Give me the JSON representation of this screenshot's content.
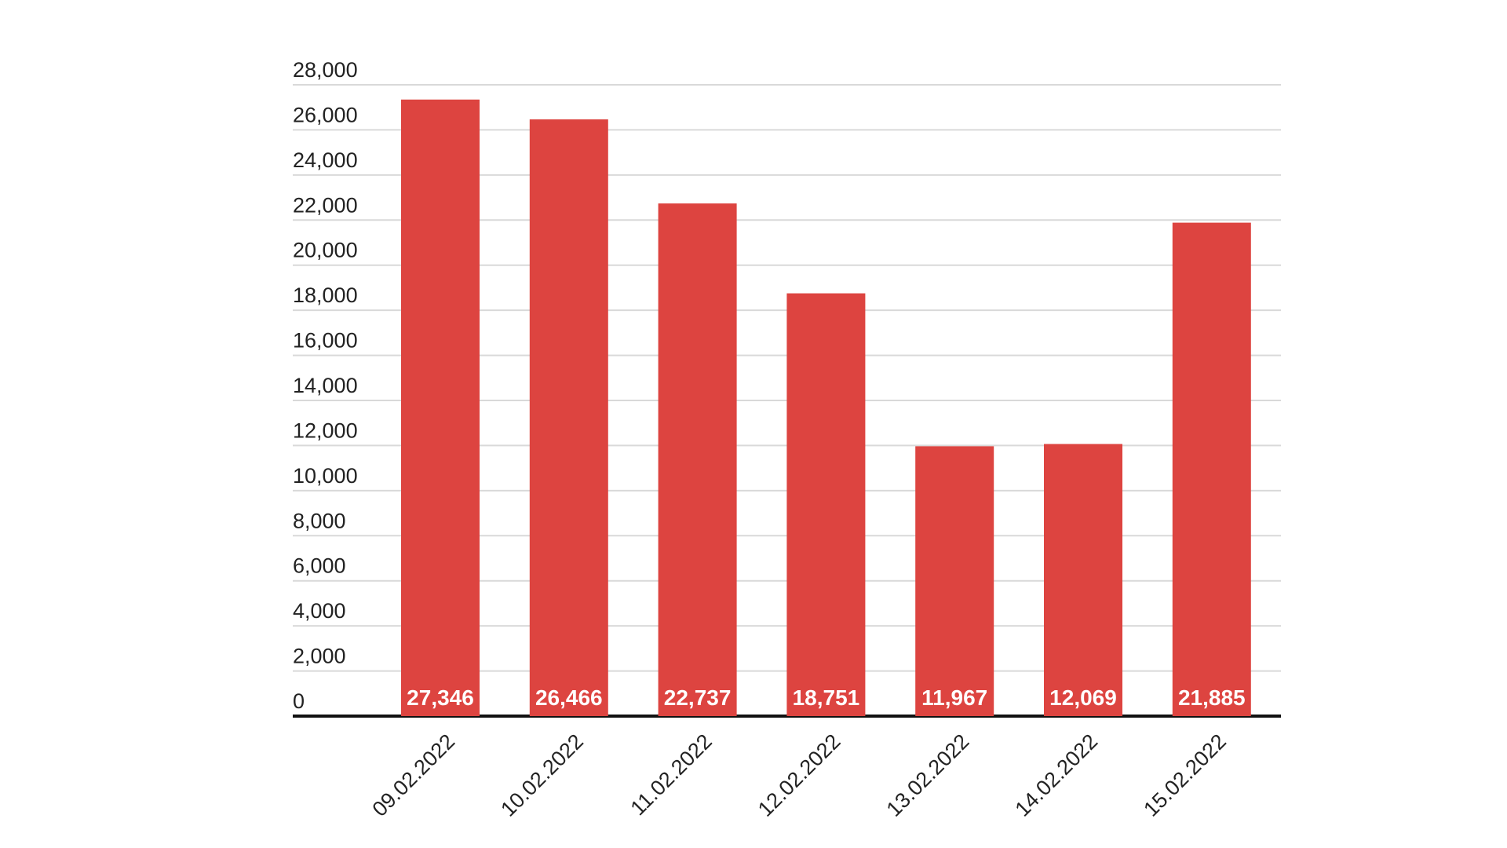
{
  "chart_data": {
    "type": "bar",
    "categories": [
      "09.02.2022",
      "10.02.2022",
      "11.02.2022",
      "12.02.2022",
      "13.02.2022",
      "14.02.2022",
      "15.02.2022"
    ],
    "values": [
      27346,
      26466,
      22737,
      18751,
      11967,
      12069,
      21885
    ],
    "value_labels": [
      "27,346",
      "26,466",
      "22,737",
      "18,751",
      "11,967",
      "12,069",
      "21,885"
    ],
    "color": "#dd4440",
    "ylim": [
      0,
      28000
    ],
    "yticks": [
      0,
      {
        "value": 2000,
        "label": "2,000"
      },
      {
        "value": 4000,
        "label": "4,000"
      },
      {
        "value": 6000,
        "label": "6,000"
      },
      {
        "value": 8000,
        "label": "8,000"
      },
      {
        "value": 10000,
        "label": "10,000"
      },
      {
        "value": 12000,
        "label": "12,000"
      },
      {
        "value": 14000,
        "label": "14,000"
      },
      {
        "value": 16000,
        "label": "16,000"
      },
      {
        "value": 18000,
        "label": "18,000"
      },
      {
        "value": 20000,
        "label": "20,000"
      },
      {
        "value": 22000,
        "label": "22,000"
      },
      {
        "value": 24000,
        "label": "24,000"
      },
      {
        "value": 26000,
        "label": "26,000"
      },
      {
        "value": 28000,
        "label": "28,000"
      }
    ],
    "grid": true
  }
}
